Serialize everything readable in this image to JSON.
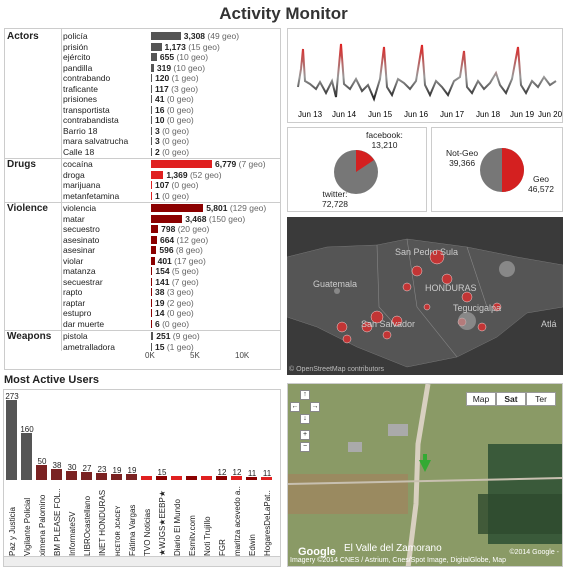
{
  "title": "Activity Monitor",
  "actors": {
    "header": "Actors",
    "rows": [
      {
        "label": "policía",
        "value": "3,308",
        "geo": "(49 geo)",
        "n": 3308
      },
      {
        "label": "prisión",
        "value": "1,173",
        "geo": "(15 geo)",
        "n": 1173
      },
      {
        "label": "ejército",
        "value": "655",
        "geo": "(10 geo)",
        "n": 655
      },
      {
        "label": "pandilla",
        "value": "319",
        "geo": "(10 geo)",
        "n": 319
      },
      {
        "label": "contrabando",
        "value": "120",
        "geo": "(1 geo)",
        "n": 120
      },
      {
        "label": "traficante",
        "value": "117",
        "geo": "(3 geo)",
        "n": 117
      },
      {
        "label": "prisiones",
        "value": "41",
        "geo": "(0 geo)",
        "n": 41
      },
      {
        "label": "transportista",
        "value": "16",
        "geo": "(0 geo)",
        "n": 16
      },
      {
        "label": "contrabandista",
        "value": "10",
        "geo": "(0 geo)",
        "n": 10
      },
      {
        "label": "Barrio 18",
        "value": "3",
        "geo": "(0 geo)",
        "n": 3
      },
      {
        "label": "mara salvatrucha",
        "value": "3",
        "geo": "(0 geo)",
        "n": 3
      },
      {
        "label": "Calle 18",
        "value": "2",
        "geo": "(0 geo)",
        "n": 2
      }
    ]
  },
  "drugs": {
    "header": "Drugs",
    "rows": [
      {
        "label": "cocaína",
        "value": "6,779",
        "geo": "(7 geo)",
        "n": 6779
      },
      {
        "label": "droga",
        "value": "1,369",
        "geo": "(52 geo)",
        "n": 1369
      },
      {
        "label": "marijuana",
        "value": "107",
        "geo": "(0 geo)",
        "n": 107
      },
      {
        "label": "metanfetamina",
        "value": "1",
        "geo": "(0 geo)",
        "n": 1
      }
    ]
  },
  "violence": {
    "header": "Violence",
    "rows": [
      {
        "label": "violencia",
        "value": "5,801",
        "geo": "(129 geo)",
        "n": 5801
      },
      {
        "label": "matar",
        "value": "3,468",
        "geo": "(150 geo)",
        "n": 3468
      },
      {
        "label": "secuestro",
        "value": "798",
        "geo": "(20 geo)",
        "n": 798
      },
      {
        "label": "asesinato",
        "value": "664",
        "geo": "(12 geo)",
        "n": 664
      },
      {
        "label": "asesinar",
        "value": "596",
        "geo": "(8 geo)",
        "n": 596
      },
      {
        "label": "violar",
        "value": "401",
        "geo": "(17 geo)",
        "n": 401
      },
      {
        "label": "matanza",
        "value": "154",
        "geo": "(5 geo)",
        "n": 154
      },
      {
        "label": "secuestrar",
        "value": "141",
        "geo": "(7 geo)",
        "n": 141
      },
      {
        "label": "rapto",
        "value": "38",
        "geo": "(3 geo)",
        "n": 38
      },
      {
        "label": "raptar",
        "value": "19",
        "geo": "(2 geo)",
        "n": 19
      },
      {
        "label": "estupro",
        "value": "14",
        "geo": "(0 geo)",
        "n": 14
      },
      {
        "label": "dar muerte",
        "value": "6",
        "geo": "(0 geo)",
        "n": 6
      }
    ]
  },
  "weapons": {
    "header": "Weapons",
    "rows": [
      {
        "label": "pistola",
        "value": "251",
        "geo": "(9 geo)",
        "n": 251
      },
      {
        "label": "ametralladora",
        "value": "15",
        "geo": "(1 geo)",
        "n": 15
      }
    ]
  },
  "axis": {
    "ticks": [
      "0K",
      "5K",
      "10K"
    ]
  },
  "timeline": {
    "labels": [
      "Jun 13",
      "Jun 14",
      "Jun 15",
      "Jun 16",
      "Jun 17",
      "Jun 18",
      "Jun 19",
      "Jun 20"
    ]
  },
  "pie_source": {
    "facebook_label": "facebook:",
    "facebook_value": "13,210",
    "twitter_label": "twitter:",
    "twitter_value": "72,728"
  },
  "pie_geo": {
    "notgeo_label": "Not-Geo",
    "notgeo_value": "39,366",
    "geo_label": "Geo",
    "geo_value": "46,572"
  },
  "map1": {
    "labels": [
      "San Pedro Sula",
      "Guatemala",
      "HONDURAS",
      "Tegucigalpa",
      "San Salvador",
      "Atlá"
    ],
    "credit": "© OpenStreetMap contributors"
  },
  "users": {
    "title": "Most Active Users",
    "items": [
      {
        "name": "Paz y Justicia",
        "value": "273",
        "n": 273
      },
      {
        "name": "Vigilante Policial",
        "value": "160",
        "n": 160
      },
      {
        "name": "ximena Palomino",
        "value": "50",
        "n": 50
      },
      {
        "name": "BM PLEASE FOL..",
        "value": "38",
        "n": 38
      },
      {
        "name": "InformateSV",
        "value": "30",
        "n": 30
      },
      {
        "name": "LIBROcastellano",
        "value": "27",
        "n": 27
      },
      {
        "name": "INET HONDURAS",
        "value": "23",
        "n": 23
      },
      {
        "name": "ʜᴄᴇтᴏʀ ᴊᴄᴀᴄᴇʏ",
        "value": "19",
        "n": 19
      },
      {
        "name": "Fátima Vargas",
        "value": "19",
        "n": 19
      },
      {
        "name": "TVO Noticias",
        "value": "",
        "n": 15
      },
      {
        "name": "★WJGS★EEBP★",
        "value": "15",
        "n": 15
      },
      {
        "name": "Diario El Mundo",
        "value": "",
        "n": 14
      },
      {
        "name": "Esmitv.com",
        "value": "",
        "n": 13
      },
      {
        "name": "Noti Trujillo",
        "value": "",
        "n": 12
      },
      {
        "name": "FGR",
        "value": "12",
        "n": 12
      },
      {
        "name": "maritza acevedo a..",
        "value": "12",
        "n": 12
      },
      {
        "name": "Edwin",
        "value": "11",
        "n": 11
      },
      {
        "name": "HogaresDeLaPat..",
        "value": "11",
        "n": 11
      }
    ]
  },
  "map2": {
    "buttons": [
      "Map",
      "Sat",
      "Ter"
    ],
    "town": "El Valle del Zamorano",
    "google": "Google",
    "imagery": "Imagery ©2014 CNES / Astrium, Cnes/Spot Image, DigitalGlobe, Map",
    "copy": "©2014 Google -"
  },
  "colors": {
    "dark": "#555555",
    "red": "#e02020",
    "darkred": "#8b0000",
    "mid": "#7a2222"
  }
}
